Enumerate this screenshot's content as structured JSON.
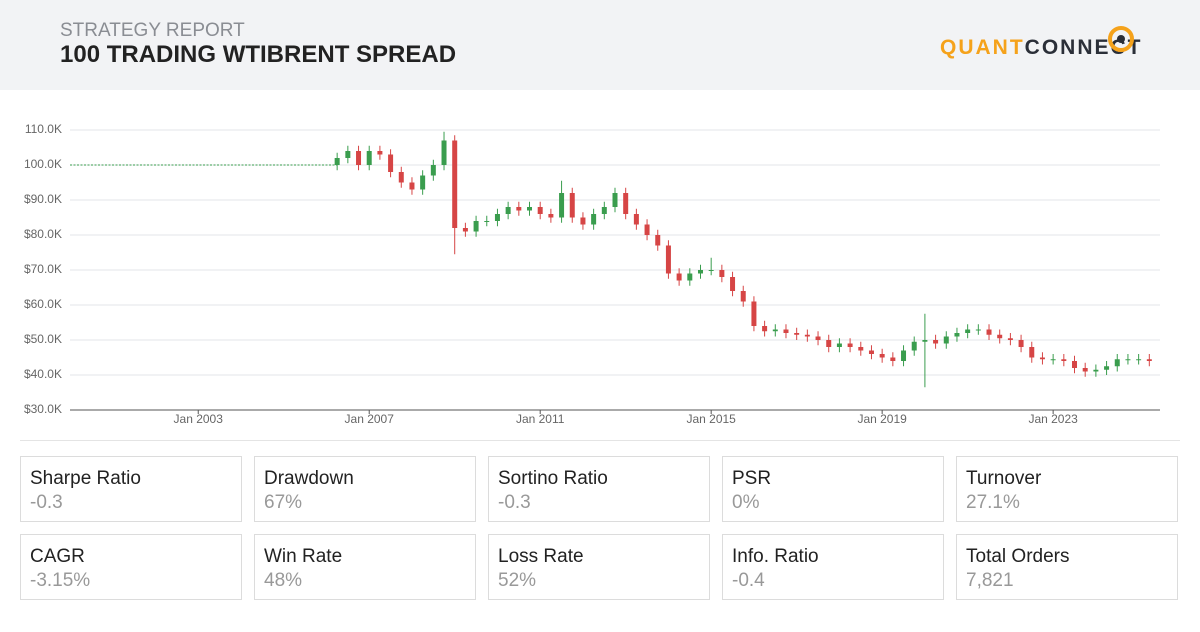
{
  "header": {
    "subtitle": "STRATEGY REPORT",
    "title": "100 TRADING WTIBRENT SPREAD",
    "logo": [
      "QUANT",
      "CONNECT"
    ]
  },
  "chart_data": {
    "type": "candlestick",
    "xlim": [
      "2000-01",
      "2025-07"
    ],
    "xticks": [
      {
        "value": "2003-01",
        "label": "Jan 2003"
      },
      {
        "value": "2007-01",
        "label": "Jan 2007"
      },
      {
        "value": "2011-01",
        "label": "Jan 2011"
      },
      {
        "value": "2015-01",
        "label": "Jan 2015"
      },
      {
        "value": "2019-01",
        "label": "Jan 2019"
      },
      {
        "value": "2023-01",
        "label": "Jan 2023"
      }
    ],
    "ylim": [
      30000,
      110000
    ],
    "yticks": [
      {
        "value": 30000,
        "label": "$30.0K"
      },
      {
        "value": 40000,
        "label": "$40.0K"
      },
      {
        "value": 50000,
        "label": "$50.0K"
      },
      {
        "value": 60000,
        "label": "$60.0K"
      },
      {
        "value": 70000,
        "label": "$70.0K"
      },
      {
        "value": 80000,
        "label": "$80.0K"
      },
      {
        "value": 90000,
        "label": "$90.0K"
      },
      {
        "value": 100000,
        "label": "100.0K"
      },
      {
        "value": 110000,
        "label": "110.0K"
      }
    ],
    "grid": true,
    "up_color": "#3a9d4e",
    "down_color": "#d64545",
    "line": {
      "x": [
        "2000-01",
        "2006-04"
      ],
      "values": [
        100000,
        100000
      ],
      "color": "#3a9d4e"
    },
    "x": [
      "2006-04",
      "2006-07",
      "2006-10",
      "2007-01",
      "2007-04",
      "2007-07",
      "2007-10",
      "2008-01",
      "2008-04",
      "2008-07",
      "2008-10",
      "2009-01",
      "2009-04",
      "2009-07",
      "2009-10",
      "2010-01",
      "2010-04",
      "2010-07",
      "2010-10",
      "2011-01",
      "2011-04",
      "2011-07",
      "2011-10",
      "2012-01",
      "2012-04",
      "2012-07",
      "2012-10",
      "2013-01",
      "2013-04",
      "2013-07",
      "2013-10",
      "2014-01",
      "2014-04",
      "2014-07",
      "2014-10",
      "2015-01",
      "2015-04",
      "2015-07",
      "2015-10",
      "2016-01",
      "2016-04",
      "2016-07",
      "2016-10",
      "2017-01",
      "2017-04",
      "2017-07",
      "2017-10",
      "2018-01",
      "2018-04",
      "2018-07",
      "2018-10",
      "2019-01",
      "2019-04",
      "2019-07",
      "2019-10",
      "2020-01",
      "2020-04",
      "2020-07",
      "2020-10",
      "2021-01",
      "2021-04",
      "2021-07",
      "2021-10",
      "2022-01",
      "2022-04",
      "2022-07",
      "2022-10",
      "2023-01",
      "2023-04",
      "2023-07",
      "2023-10",
      "2024-01",
      "2024-04",
      "2024-07",
      "2024-10",
      "2025-01",
      "2025-04"
    ],
    "open": [
      100000,
      102000,
      104000,
      100000,
      104000,
      103000,
      98000,
      95000,
      93000,
      97000,
      100000,
      107000,
      82000,
      81000,
      84000,
      84000,
      86000,
      88000,
      87000,
      88000,
      86000,
      85000,
      92000,
      85000,
      83000,
      86000,
      88000,
      92000,
      86000,
      83000,
      80000,
      77000,
      69000,
      67000,
      69000,
      70000,
      70000,
      68000,
      64000,
      61000,
      54000,
      52500,
      53000,
      52000,
      51500,
      51000,
      50000,
      48000,
      49000,
      48000,
      47000,
      46000,
      45000,
      44000,
      47000,
      49500,
      50000,
      49000,
      51000,
      52000,
      53000,
      53000,
      51500,
      50500,
      50000,
      48000,
      45000,
      44500,
      44500,
      44000,
      42000,
      41000,
      41500,
      42500,
      44500,
      44500,
      44500
    ],
    "high": [
      103500,
      105500,
      105500,
      105500,
      105500,
      104500,
      99500,
      96500,
      98500,
      101500,
      109500,
      108500,
      83500,
      85500,
      85500,
      87500,
      89500,
      89500,
      89500,
      89500,
      87500,
      95500,
      93500,
      86500,
      87500,
      89500,
      93500,
      93500,
      87500,
      84500,
      81500,
      78500,
      70500,
      70500,
      71500,
      73500,
      71500,
      69500,
      65500,
      62500,
      55500,
      54500,
      54500,
      53500,
      53000,
      52500,
      51500,
      50500,
      50500,
      49500,
      48500,
      47500,
      46500,
      48500,
      51000,
      57500,
      51500,
      52500,
      53500,
      54500,
      54500,
      54500,
      53000,
      52000,
      51500,
      49500,
      46500,
      46000,
      46000,
      45500,
      43500,
      43000,
      44000,
      46000,
      46000,
      46000,
      46000
    ],
    "low": [
      98500,
      100500,
      98500,
      98500,
      101500,
      96500,
      93500,
      91500,
      91500,
      95500,
      98500,
      74500,
      79500,
      79500,
      82500,
      82500,
      84500,
      85500,
      85500,
      84500,
      83500,
      83500,
      83500,
      81500,
      81500,
      84500,
      86500,
      84500,
      81500,
      78500,
      75500,
      67500,
      65500,
      65500,
      67500,
      68500,
      66500,
      62500,
      59500,
      52500,
      51000,
      51000,
      50500,
      50000,
      49500,
      48500,
      46500,
      46500,
      46500,
      45500,
      44500,
      43500,
      42500,
      42500,
      45500,
      36500,
      47500,
      47500,
      49500,
      50500,
      51500,
      50000,
      49000,
      48500,
      46500,
      43500,
      43000,
      43000,
      42500,
      40500,
      39500,
      39500,
      40000,
      41000,
      43000,
      43000,
      42500
    ],
    "close": [
      102000,
      104000,
      100000,
      104000,
      103000,
      98000,
      95000,
      93000,
      97000,
      100000,
      107000,
      82000,
      81000,
      84000,
      84000,
      86000,
      88000,
      87000,
      88000,
      86000,
      85000,
      92000,
      85000,
      83000,
      86000,
      88000,
      92000,
      86000,
      83000,
      80000,
      77000,
      69000,
      67000,
      69000,
      70000,
      70000,
      68000,
      64000,
      61000,
      54000,
      52500,
      53000,
      52000,
      51500,
      51000,
      50000,
      48000,
      49000,
      48000,
      47000,
      46000,
      45000,
      44000,
      47000,
      49500,
      50000,
      49000,
      51000,
      52000,
      53000,
      53000,
      51500,
      50500,
      50000,
      48000,
      45000,
      44500,
      44500,
      44000,
      42000,
      41000,
      41500,
      42500,
      44500,
      44500,
      44500,
      44000
    ]
  },
  "stats": [
    {
      "label": "Sharpe Ratio",
      "value": "-0.3"
    },
    {
      "label": "Drawdown",
      "value": "67%"
    },
    {
      "label": "Sortino Ratio",
      "value": "-0.3"
    },
    {
      "label": "PSR",
      "value": "0%"
    },
    {
      "label": "Turnover",
      "value": "27.1%"
    },
    {
      "label": "CAGR",
      "value": "-3.15%"
    },
    {
      "label": "Win Rate",
      "value": "48%"
    },
    {
      "label": "Loss Rate",
      "value": "52%"
    },
    {
      "label": "Info. Ratio",
      "value": "-0.4"
    },
    {
      "label": "Total Orders",
      "value": "7,821"
    }
  ]
}
